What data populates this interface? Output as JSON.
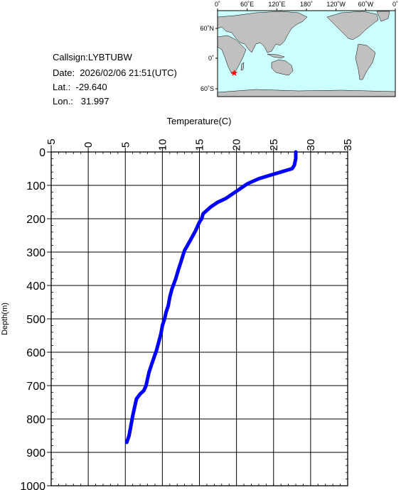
{
  "info": {
    "callsign": "Callsign:LYBTUBW",
    "date": "Date:  2026/02/06 21:51(UTC)",
    "lat": "Lat.:  -29.640",
    "lon": "Lon.:   31.997"
  },
  "map": {
    "lon_labels": [
      "0˚",
      "60˚E",
      "120˚E",
      "180˚",
      "120˚W",
      "60˚W",
      "0˚"
    ],
    "lat_labels": [
      "60˚N",
      "0˚",
      "60˚S"
    ],
    "marker": {
      "lat": -29.64,
      "lon": 31.997,
      "color": "#ff0000"
    },
    "ocean_color": "#ccffff",
    "land_color": "#c0c0c0"
  },
  "chart_data": {
    "type": "line",
    "title": "",
    "xlabel": "Temperature(C)",
    "ylabel": "Depth(m)",
    "xlim": [
      -5,
      35
    ],
    "ylim": [
      0,
      1000
    ],
    "y_inverted": true,
    "x_ticks": [
      "-5",
      "0",
      "5",
      "10",
      "15",
      "20",
      "25",
      "30",
      "35"
    ],
    "y_ticks": [
      "0",
      "100",
      "200",
      "300",
      "400",
      "500",
      "600",
      "700",
      "800",
      "900",
      "1000"
    ],
    "grid": true,
    "color": "#0000ff",
    "series": [
      {
        "x": [
          28.0,
          28.0,
          27.8,
          27.5,
          26.0,
          24.5,
          23.0,
          21.5,
          20.5,
          19.5,
          18.5,
          17.5,
          16.5,
          16.0,
          15.5,
          15.3,
          15.0,
          14.8,
          14.5,
          14.0,
          13.5,
          13.0,
          12.7,
          12.5,
          12.2,
          11.8,
          11.3,
          11.0,
          10.8,
          10.5,
          10.3,
          10.0,
          9.8,
          9.5,
          9.2,
          8.8,
          8.5,
          8.2,
          8.0,
          7.8,
          7.5,
          7.0,
          6.5,
          6.3,
          6.0,
          5.8,
          5.5,
          5.2
        ],
        "y": [
          0,
          20,
          40,
          50,
          60,
          70,
          80,
          95,
          110,
          125,
          140,
          150,
          165,
          175,
          185,
          200,
          210,
          220,
          235,
          255,
          275,
          295,
          315,
          330,
          350,
          380,
          410,
          435,
          460,
          480,
          500,
          520,
          545,
          570,
          595,
          620,
          640,
          660,
          680,
          700,
          715,
          725,
          740,
          760,
          790,
          815,
          850,
          870
        ]
      }
    ]
  }
}
